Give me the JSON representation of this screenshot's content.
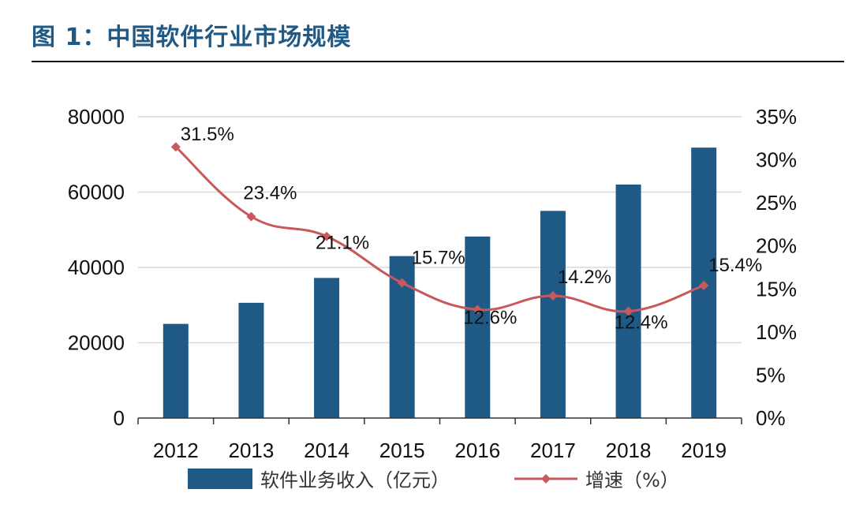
{
  "figure": {
    "title": "图 1：中国软件行业市场规模"
  },
  "chart_data": {
    "type": "bar",
    "categories": [
      "2012",
      "2013",
      "2014",
      "2015",
      "2016",
      "2017",
      "2018",
      "2019"
    ],
    "series": [
      {
        "name": "软件业务收入（亿元）",
        "type": "bar",
        "axis": "left",
        "color": "#1f5a86",
        "values": [
          25000,
          30600,
          37200,
          43000,
          48200,
          55000,
          62000,
          71800
        ]
      },
      {
        "name": "增速（%）",
        "type": "line",
        "axis": "right",
        "color": "#c9585c",
        "values": [
          31.5,
          23.4,
          21.1,
          15.7,
          12.6,
          14.2,
          12.4,
          15.4
        ],
        "labels": [
          "31.5%",
          "23.4%",
          "21.1%",
          "15.7%",
          "12.6%",
          "14.2%",
          "12.4%",
          "15.4%"
        ]
      }
    ],
    "y_left": {
      "min": 0,
      "max": 80000,
      "ticks": [
        "0",
        "20000",
        "40000",
        "60000",
        "80000"
      ]
    },
    "y_right": {
      "min": 0,
      "max": 35,
      "ticks": [
        "0%",
        "5%",
        "10%",
        "15%",
        "20%",
        "25%",
        "30%",
        "35%"
      ]
    },
    "grid": true,
    "legend_position": "bottom"
  }
}
